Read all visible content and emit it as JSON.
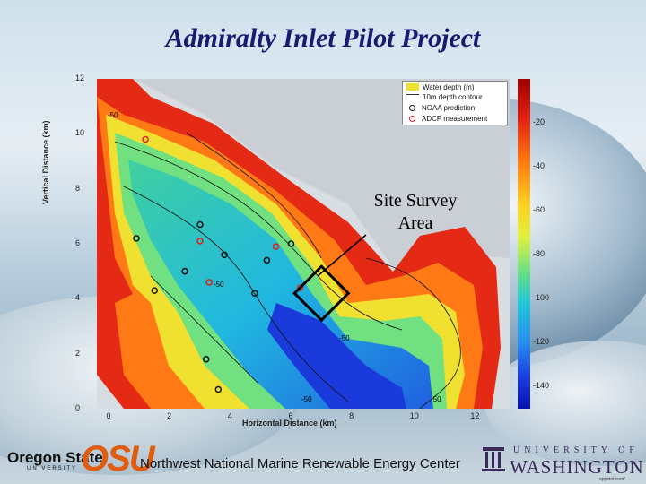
{
  "slide": {
    "title": "Admiralty Inlet Pilot Project",
    "annotation": "Site Survey Area",
    "footer_text": "Northwest National Marine Renewable Energy Center",
    "credit": "appstat.com/..."
  },
  "logos": {
    "osu_name": "Oregon State",
    "osu_sub": "UNIVERSITY",
    "osu_mark": "OSU",
    "uw_top": "UNIVERSITY OF",
    "uw_name": "WASHINGTON"
  },
  "chart_data": {
    "type": "heatmap",
    "title": "",
    "xlabel": "Horizontal Distance (km)",
    "ylabel": "Vertical Distance (km)",
    "x_ticks": [
      "0",
      "2",
      "4",
      "6",
      "8",
      "10",
      "12"
    ],
    "y_ticks": [
      "0",
      "2",
      "4",
      "6",
      "8",
      "10",
      "12"
    ],
    "xlim": [
      -0.4,
      13.2
    ],
    "ylim": [
      0,
      12
    ],
    "colorbar_ticks": [
      "-20",
      "-40",
      "-60",
      "-80",
      "-100",
      "-120",
      "-140"
    ],
    "colorbar_range": [
      0,
      -150
    ],
    "legend": {
      "position": "top-right",
      "entries": [
        "Water depth (m)",
        "10m depth contour",
        "NOAA prediction",
        "ADCP measurement"
      ]
    },
    "contour_labels": [
      "-50",
      "-50",
      "-50",
      "-50",
      "-50"
    ],
    "noaa_points": [
      [
        0.9,
        6.2
      ],
      [
        1.5,
        4.3
      ],
      [
        3.0,
        6.7
      ],
      [
        2.5,
        5.0
      ],
      [
        3.8,
        5.6
      ],
      [
        5.2,
        5.4
      ],
      [
        6.0,
        6.0
      ],
      [
        4.8,
        4.2
      ],
      [
        3.2,
        1.8
      ],
      [
        3.6,
        0.7
      ]
    ],
    "adcp_points": [
      [
        1.2,
        9.8
      ],
      [
        3.3,
        4.6
      ],
      [
        6.3,
        4.4
      ],
      [
        3.0,
        6.1
      ],
      [
        5.5,
        5.9
      ]
    ],
    "survey_area_center": [
      7.0,
      4.2
    ]
  },
  "colors": {
    "title": "#1a1a70",
    "land": "#cfd6dc",
    "osu_orange": "#e05c10",
    "uw_purple": "#3a2a5a"
  }
}
